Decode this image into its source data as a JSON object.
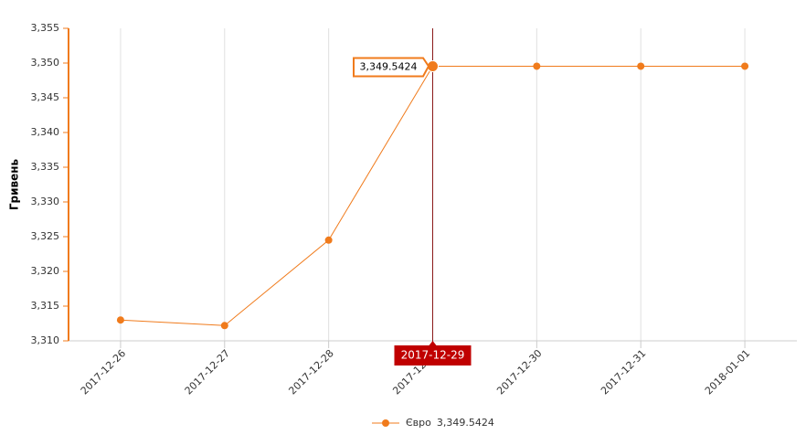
{
  "chart_data": {
    "type": "line",
    "y_label": "Гривень",
    "categories": [
      "2017-12-26",
      "2017-12-27",
      "2017-12-28",
      "2017-12-29",
      "2017-12-30",
      "2017-12-31",
      "2018-01-01"
    ],
    "series": [
      {
        "name": "Євро",
        "color": "#f07b1c",
        "values": [
          3313.0,
          3312.2,
          3324.5,
          3349.5424,
          3349.5424,
          3349.5424,
          3349.5424
        ]
      }
    ],
    "ylim": [
      3310,
      3355
    ],
    "yticks": [
      {
        "value": 3310,
        "label": "3,310"
      },
      {
        "value": 3315,
        "label": "3,315"
      },
      {
        "value": 3320,
        "label": "3,320"
      },
      {
        "value": 3325,
        "label": "3,325"
      },
      {
        "value": 3330,
        "label": "3,330"
      },
      {
        "value": 3335,
        "label": "3,335"
      },
      {
        "value": 3340,
        "label": "3,340"
      },
      {
        "value": 3345,
        "label": "3,345"
      },
      {
        "value": 3350,
        "label": "3,350"
      },
      {
        "value": 3355,
        "label": "3,355"
      }
    ],
    "grid": true,
    "tooltip": {
      "index": 3,
      "label": "3,349.5424"
    }
  }
}
